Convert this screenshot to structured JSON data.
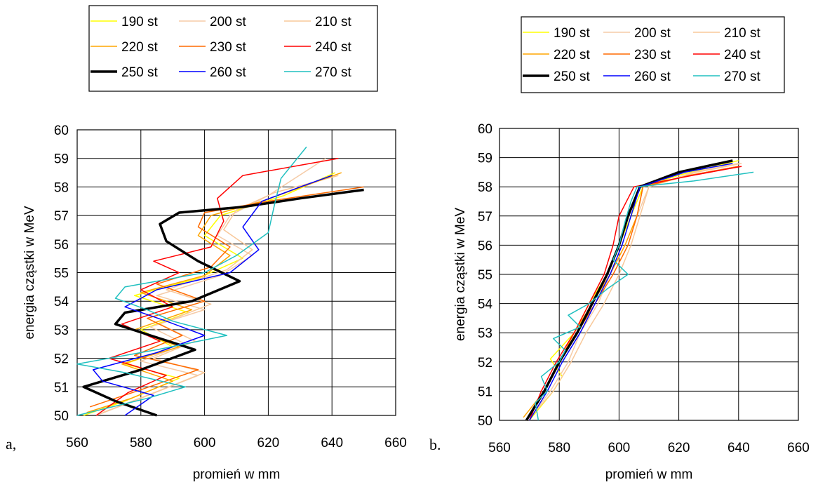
{
  "chart_data": [
    {
      "type": "line",
      "panel_label": "a,",
      "xlabel": "promień  w mm",
      "ylabel": "energia cząstki w MeV",
      "xlim": [
        560,
        660
      ],
      "ylim": [
        50,
        60
      ],
      "xticks": [
        560,
        580,
        600,
        620,
        640,
        660
      ],
      "yticks": [
        50,
        51,
        52,
        53,
        54,
        55,
        56,
        57,
        58,
        59,
        60
      ],
      "grid": true,
      "legend_position": "top",
      "series": [
        {
          "name": "190 st",
          "color": "#ffff00",
          "width": 1.5,
          "points": [
            [
              562,
              50.0
            ],
            [
              575,
              50.5
            ],
            [
              592,
              51.3
            ],
            [
              575,
              51.8
            ],
            [
              590,
              52.4
            ],
            [
              580,
              53.0
            ],
            [
              595,
              53.6
            ],
            [
              578,
              54.2
            ],
            [
              598,
              54.8
            ],
            [
              612,
              55.5
            ],
            [
              600,
              56.3
            ],
            [
              605,
              57.0
            ],
            [
              625,
              57.7
            ],
            [
              641,
              58.5
            ]
          ]
        },
        {
          "name": "200 st",
          "color": "#f5cba7",
          "width": 1.5,
          "points": [
            [
              566,
              50.0
            ],
            [
              580,
              50.6
            ],
            [
              598,
              51.4
            ],
            [
              580,
              51.9
            ],
            [
              594,
              52.5
            ],
            [
              583,
              53.1
            ],
            [
              600,
              53.7
            ],
            [
              585,
              54.2
            ],
            [
              605,
              54.9
            ],
            [
              615,
              55.6
            ],
            [
              604,
              56.3
            ],
            [
              608,
              57.0
            ],
            [
              620,
              57.7
            ],
            [
              638,
              59.0
            ]
          ]
        },
        {
          "name": "210 st",
          "color": "#f8c89a",
          "width": 1.5,
          "points": [
            [
              568,
              50.1
            ],
            [
              582,
              50.7
            ],
            [
              600,
              51.5
            ],
            [
              584,
              52.0
            ],
            [
              597,
              52.6
            ],
            [
              586,
              53.2
            ],
            [
              602,
              53.9
            ],
            [
              588,
              54.4
            ],
            [
              607,
              55.1
            ],
            [
              615,
              55.8
            ],
            [
              606,
              56.5
            ],
            [
              610,
              57.2
            ],
            [
              622,
              57.8
            ],
            [
              642,
              58.4
            ]
          ]
        },
        {
          "name": "220 st",
          "color": "#ffa500",
          "width": 1.5,
          "points": [
            [
              563,
              50.1
            ],
            [
              577,
              50.6
            ],
            [
              590,
              51.2
            ],
            [
              574,
              51.8
            ],
            [
              592,
              52.4
            ],
            [
              578,
              53.0
            ],
            [
              596,
              53.7
            ],
            [
              580,
              54.3
            ],
            [
              600,
              54.9
            ],
            [
              608,
              55.6
            ],
            [
              598,
              56.3
            ],
            [
              602,
              57.0
            ],
            [
              618,
              57.5
            ],
            [
              643,
              58.5
            ]
          ]
        },
        {
          "name": "230 st",
          "color": "#ff6a00",
          "width": 1.5,
          "points": [
            [
              564,
              50.3
            ],
            [
              580,
              50.9
            ],
            [
              598,
              51.6
            ],
            [
              578,
              52.1
            ],
            [
              593,
              52.8
            ],
            [
              582,
              53.4
            ],
            [
              600,
              54.0
            ],
            [
              585,
              54.6
            ],
            [
              602,
              55.2
            ],
            [
              608,
              55.9
            ],
            [
              598,
              56.6
            ],
            [
              600,
              57.1
            ],
            [
              620,
              57.5
            ],
            [
              650,
              58.0
            ]
          ]
        },
        {
          "name": "240 st",
          "color": "#ff0000",
          "width": 1.5,
          "points": [
            [
              566,
              50.0
            ],
            [
              576,
              50.8
            ],
            [
              588,
              51.4
            ],
            [
              570,
              52.0
            ],
            [
              586,
              52.6
            ],
            [
              574,
              53.2
            ],
            [
              590,
              53.8
            ],
            [
              580,
              54.4
            ],
            [
              592,
              55.0
            ],
            [
              584,
              55.4
            ],
            [
              602,
              55.9
            ],
            [
              606,
              56.8
            ],
            [
              604,
              57.6
            ],
            [
              612,
              58.4
            ],
            [
              642,
              59.0
            ]
          ]
        },
        {
          "name": "250 st",
          "color": "#000000",
          "width": 3.5,
          "points": [
            [
              585,
              50.0
            ],
            [
              572,
              50.5
            ],
            [
              562,
              51.0
            ],
            [
              580,
              51.6
            ],
            [
              597,
              52.3
            ],
            [
              583,
              52.8
            ],
            [
              572,
              53.2
            ],
            [
              575,
              53.6
            ],
            [
              596,
              54.0
            ],
            [
              611,
              54.7
            ],
            [
              598,
              55.4
            ],
            [
              588,
              56.1
            ],
            [
              586,
              56.7
            ],
            [
              592,
              57.1
            ],
            [
              612,
              57.3
            ],
            [
              630,
              57.6
            ],
            [
              650,
              57.9
            ]
          ]
        },
        {
          "name": "260 st",
          "color": "#0000ff",
          "width": 1.5,
          "points": [
            [
              575,
              50.0
            ],
            [
              584,
              50.7
            ],
            [
              568,
              51.2
            ],
            [
              565,
              51.6
            ],
            [
              585,
              52.2
            ],
            [
              600,
              52.8
            ],
            [
              588,
              53.3
            ],
            [
              575,
              53.8
            ],
            [
              585,
              54.4
            ],
            [
              608,
              55.0
            ],
            [
              617,
              55.8
            ],
            [
              612,
              56.6
            ],
            [
              618,
              57.5
            ],
            [
              630,
              58.0
            ],
            [
              640,
              58.4
            ]
          ]
        },
        {
          "name": "270 st",
          "color": "#20c0c0",
          "width": 1.5,
          "points": [
            [
              560,
              50.0
            ],
            [
              582,
              50.6
            ],
            [
              594,
              51.0
            ],
            [
              575,
              51.5
            ],
            [
              560,
              51.8
            ],
            [
              585,
              52.3
            ],
            [
              607,
              52.8
            ],
            [
              590,
              53.3
            ],
            [
              582,
              53.7
            ],
            [
              572,
              54.1
            ],
            [
              575,
              54.5
            ],
            [
              600,
              55.0
            ],
            [
              610,
              55.6
            ],
            [
              620,
              56.4
            ],
            [
              622,
              57.4
            ],
            [
              624,
              58.3
            ],
            [
              632,
              59.4
            ]
          ]
        }
      ]
    },
    {
      "type": "line",
      "panel_label": "b.",
      "xlabel": "promień  w mm",
      "ylabel": "energia cząstki w MeV",
      "xlim": [
        560,
        660
      ],
      "ylim": [
        50,
        60
      ],
      "xticks": [
        560,
        580,
        600,
        620,
        640,
        660
      ],
      "yticks": [
        50,
        51,
        52,
        53,
        54,
        55,
        56,
        57,
        58,
        59,
        60
      ],
      "grid": true,
      "legend_position": "top",
      "series": [
        {
          "name": "190 st",
          "color": "#ffff00",
          "width": 1.5,
          "points": [
            [
              570,
              50.0
            ],
            [
              578,
              51.0
            ],
            [
              581,
              51.5
            ],
            [
              577,
              52.1
            ],
            [
              585,
              53.0
            ],
            [
              590,
              54.0
            ],
            [
              596,
              55.0
            ],
            [
              600,
              56.0
            ],
            [
              604,
              57.0
            ],
            [
              608,
              58.0
            ],
            [
              620,
              58.4
            ],
            [
              640,
              58.9
            ]
          ]
        },
        {
          "name": "200 st",
          "color": "#f5cba7",
          "width": 1.5,
          "points": [
            [
              571,
              50.2
            ],
            [
              577,
              51.0
            ],
            [
              583,
              52.0
            ],
            [
              587,
              53.0
            ],
            [
              593,
              54.0
            ],
            [
              597,
              55.0
            ],
            [
              602,
              56.0
            ],
            [
              606,
              57.0
            ],
            [
              610,
              58.0
            ],
            [
              625,
              58.5
            ],
            [
              640,
              58.8
            ]
          ]
        },
        {
          "name": "210 st",
          "color": "#f8c89a",
          "width": 1.5,
          "points": [
            [
              572,
              50.3
            ],
            [
              578,
              51.0
            ],
            [
              584,
              52.0
            ],
            [
              589,
              53.0
            ],
            [
              595,
              54.0
            ],
            [
              600,
              55.0
            ],
            [
              604,
              56.0
            ],
            [
              607,
              57.0
            ],
            [
              610,
              58.0
            ],
            [
              626,
              58.5
            ],
            [
              641,
              58.8
            ]
          ]
        },
        {
          "name": "220 st",
          "color": "#ffa500",
          "width": 1.5,
          "points": [
            [
              568,
              50.1
            ],
            [
              575,
              51.0
            ],
            [
              580,
              52.0
            ],
            [
              585,
              53.0
            ],
            [
              591,
              54.0
            ],
            [
              597,
              55.0
            ],
            [
              602,
              56.0
            ],
            [
              606,
              57.0
            ],
            [
              608,
              58.0
            ],
            [
              624,
              58.4
            ],
            [
              640,
              58.7
            ]
          ]
        },
        {
          "name": "230 st",
          "color": "#ff6a00",
          "width": 1.5,
          "points": [
            [
              569,
              50.0
            ],
            [
              575,
              51.0
            ],
            [
              580,
              52.0
            ],
            [
              586,
              53.0
            ],
            [
              592,
              54.0
            ],
            [
              598,
              55.0
            ],
            [
              603,
              56.0
            ],
            [
              606,
              57.0
            ],
            [
              608,
              58.0
            ],
            [
              624,
              58.4
            ],
            [
              640,
              58.7
            ]
          ]
        },
        {
          "name": "240 st",
          "color": "#ff0000",
          "width": 1.5,
          "points": [
            [
              570,
              50.0
            ],
            [
              574,
              51.0
            ],
            [
              579,
              52.0
            ],
            [
              585,
              53.0
            ],
            [
              590,
              54.0
            ],
            [
              595,
              55.0
            ],
            [
              598,
              56.0
            ],
            [
              600,
              57.0
            ],
            [
              605,
              58.0
            ],
            [
              625,
              58.4
            ],
            [
              641,
              58.7
            ]
          ]
        },
        {
          "name": "250 st",
          "color": "#000000",
          "width": 3.5,
          "points": [
            [
              569,
              50.0
            ],
            [
              575,
              51.0
            ],
            [
              580,
              52.0
            ],
            [
              586,
              53.0
            ],
            [
              591,
              54.0
            ],
            [
              596,
              55.0
            ],
            [
              600,
              56.0
            ],
            [
              603,
              57.0
            ],
            [
              607,
              58.0
            ],
            [
              620,
              58.5
            ],
            [
              638,
              58.9
            ]
          ]
        },
        {
          "name": "260 st",
          "color": "#0000ff",
          "width": 1.5,
          "points": [
            [
              570,
              50.0
            ],
            [
              576,
              51.0
            ],
            [
              581,
              52.0
            ],
            [
              587,
              53.0
            ],
            [
              592,
              54.0
            ],
            [
              597,
              55.0
            ],
            [
              601,
              56.0
            ],
            [
              604,
              57.0
            ],
            [
              607,
              58.0
            ],
            [
              622,
              58.5
            ],
            [
              638,
              58.8
            ]
          ]
        },
        {
          "name": "270 st",
          "color": "#20c0c0",
          "width": 1.5,
          "points": [
            [
              573,
              50.0
            ],
            [
              572,
              50.6
            ],
            [
              576,
              51.0
            ],
            [
              574,
              51.5
            ],
            [
              580,
              52.0
            ],
            [
              582,
              52.4
            ],
            [
              578,
              52.8
            ],
            [
              587,
              53.2
            ],
            [
              583,
              53.6
            ],
            [
              590,
              54.0
            ],
            [
              596,
              54.5
            ],
            [
              603,
              55.0
            ],
            [
              598,
              55.5
            ],
            [
              600,
              56.0
            ],
            [
              602,
              56.8
            ],
            [
              604,
              57.5
            ],
            [
              606,
              58.0
            ],
            [
              625,
              58.2
            ],
            [
              645,
              58.5
            ]
          ]
        }
      ]
    }
  ]
}
